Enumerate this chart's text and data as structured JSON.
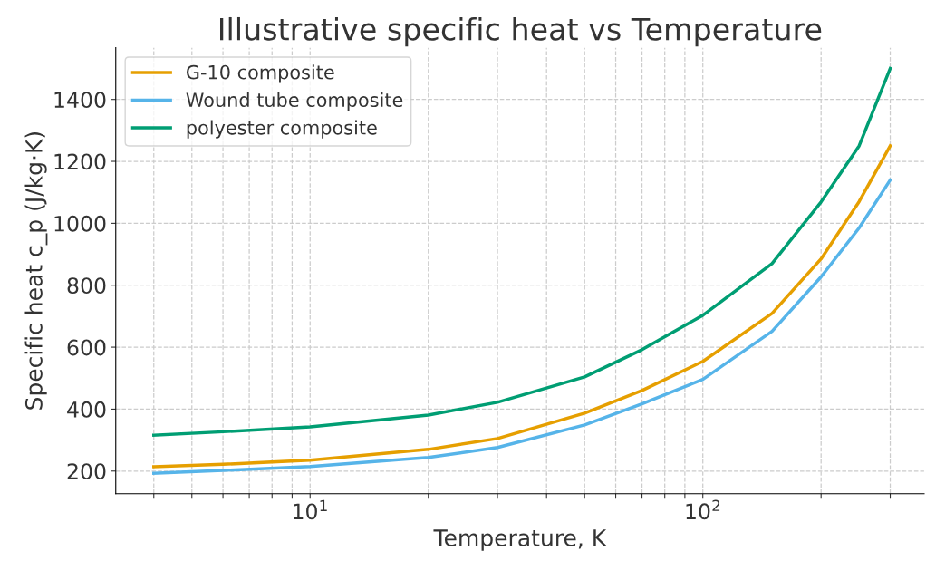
{
  "chart_data": {
    "type": "line",
    "title": "Illustrative specific heat vs Temperature",
    "xlabel": "Temperature, K",
    "ylabel": "Specific heat c_p (J/kg·K)",
    "log": "x",
    "grid": true,
    "legend": "top left",
    "xlim": [
      3.2,
      366
    ],
    "ylim": [
      127,
      1567
    ],
    "xticks": [
      {
        "value": 4,
        "label": null
      },
      {
        "value": 5,
        "label": null
      },
      {
        "value": 6,
        "label": null
      },
      {
        "value": 7,
        "label": null
      },
      {
        "value": 8,
        "label": null
      },
      {
        "value": 9,
        "label": null
      },
      {
        "value": 10,
        "label": "10$^{1}$"
      },
      {
        "value": 20,
        "label": null
      },
      {
        "value": 30,
        "label": null
      },
      {
        "value": 40,
        "label": null
      },
      {
        "value": 50,
        "label": null
      },
      {
        "value": 60,
        "label": null
      },
      {
        "value": 70,
        "label": null
      },
      {
        "value": 80,
        "label": null
      },
      {
        "value": 90,
        "label": null
      },
      {
        "value": 100,
        "label": "10$^{2}$"
      },
      {
        "value": 200,
        "label": null
      },
      {
        "value": 300,
        "label": null
      }
    ],
    "yticks": [
      200,
      400,
      600,
      800,
      1000,
      1200,
      1400
    ],
    "x": [
      4,
      6,
      10,
      20,
      30,
      50,
      70,
      100,
      150,
      200,
      250,
      300
    ],
    "series": [
      {
        "name": "G-10 composite",
        "color": "#e69f00",
        "values": [
          214,
          222,
          235,
          270,
          305,
          387,
          460,
          554,
          709,
          885,
          1070,
          1250
        ]
      },
      {
        "name": "Wound tube composite",
        "color": "#56b4e9",
        "values": [
          193,
          202,
          215,
          244,
          276,
          349,
          417,
          496,
          651,
          827,
          985,
          1140
        ]
      },
      {
        "name": "polyester composite",
        "color": "#009e73",
        "values": [
          316,
          327,
          343,
          381,
          422,
          504,
          592,
          703,
          870,
          1069,
          1250,
          1500
        ]
      }
    ]
  }
}
